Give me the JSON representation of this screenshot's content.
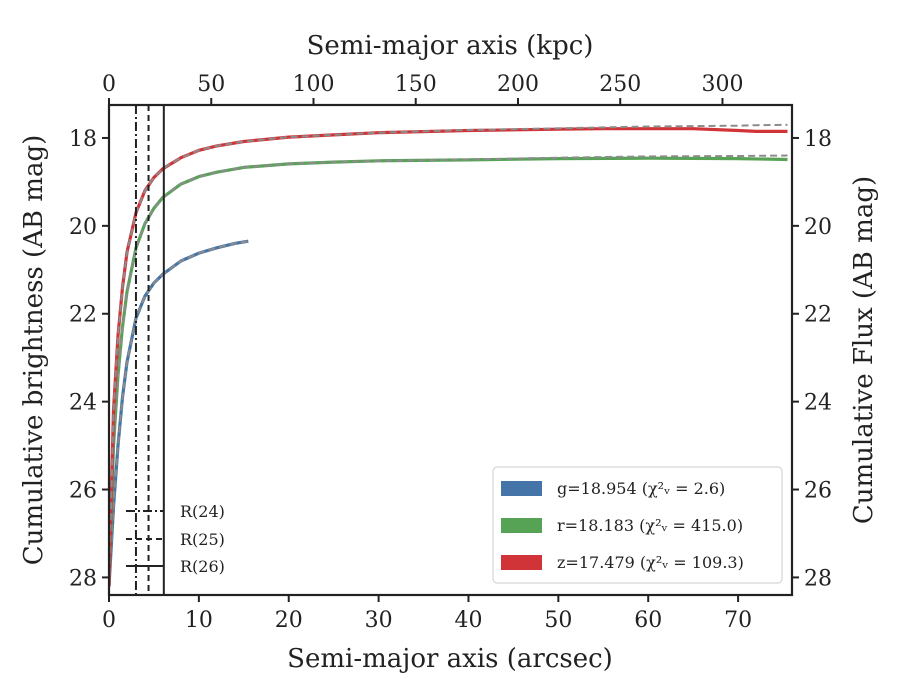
{
  "chart_data": {
    "type": "line",
    "xlabel": "Semi-major axis (arcsec)",
    "xlabel_top": "Semi-major axis (kpc)",
    "ylabel": "Cumulative brightness (AB mag)",
    "ylabel_right": "Cumulative Flux (AB mag)",
    "xlim": [
      0,
      76
    ],
    "ylim": [
      28.4,
      17.25
    ],
    "xlim_top": [
      0,
      334
    ],
    "x_ticks": [
      "0",
      "10",
      "20",
      "30",
      "40",
      "50",
      "60",
      "70"
    ],
    "y_ticks": [
      "18",
      "20",
      "22",
      "24",
      "26",
      "28"
    ],
    "x_top_ticks": [
      "0",
      "50",
      "100",
      "150",
      "200",
      "250",
      "300"
    ],
    "y_right_ticks": [
      "18",
      "20",
      "22",
      "24",
      "26",
      "28"
    ],
    "grid": false,
    "legend_placement": "lower-right",
    "series": [
      {
        "name": "g=18.954 (χ²ν = 2.6)",
        "legend_label": "g=18.954 (χ²ᵥ = 2.6)",
        "color": "#4575a8",
        "x": [
          0,
          0.5,
          1,
          1.5,
          2,
          3,
          4,
          5,
          6,
          8,
          10,
          12,
          14,
          15.5
        ],
        "y": [
          28.2,
          26.4,
          25.0,
          23.9,
          23.1,
          22.1,
          21.6,
          21.3,
          21.1,
          20.8,
          20.62,
          20.5,
          20.4,
          20.35
        ],
        "model_y": [
          28.2,
          26.4,
          25.0,
          23.9,
          23.1,
          22.1,
          21.6,
          21.3,
          21.1,
          20.8,
          20.62,
          20.5,
          20.4,
          20.35
        ]
      },
      {
        "name": "r=18.183 (χ²ν = 415.0)",
        "legend_label": "r=18.183 (χ²ᵥ = 415.0)",
        "color": "#57a356",
        "x": [
          0,
          0.5,
          1,
          1.5,
          2,
          3,
          4,
          5,
          6,
          8,
          10,
          12,
          15,
          20,
          25,
          30,
          40,
          50,
          60,
          70,
          75.5
        ],
        "y": [
          28.2,
          25.0,
          23.4,
          22.3,
          21.5,
          20.5,
          19.95,
          19.6,
          19.35,
          19.05,
          18.88,
          18.78,
          18.67,
          18.59,
          18.55,
          18.52,
          18.5,
          18.47,
          18.46,
          18.47,
          18.49
        ],
        "model_y": [
          28.2,
          25.0,
          23.4,
          22.3,
          21.5,
          20.5,
          19.95,
          19.6,
          19.35,
          19.05,
          18.88,
          18.78,
          18.67,
          18.59,
          18.55,
          18.52,
          18.49,
          18.45,
          18.42,
          18.41,
          18.4
        ]
      },
      {
        "name": "z=17.479 (χ²ν = 109.3)",
        "legend_label": "z=17.479 (χ²ᵥ = 109.3)",
        "color": "#d13438",
        "x": [
          0,
          0.5,
          1,
          1.5,
          2,
          3,
          4,
          5,
          6,
          8,
          10,
          12,
          15,
          20,
          25,
          30,
          40,
          50,
          55,
          60,
          65,
          70,
          72,
          75.5
        ],
        "y": [
          28.2,
          24.2,
          22.5,
          21.4,
          20.6,
          19.7,
          19.2,
          18.9,
          18.7,
          18.45,
          18.28,
          18.18,
          18.08,
          17.98,
          17.93,
          17.88,
          17.83,
          17.8,
          17.79,
          17.79,
          17.79,
          17.83,
          17.85,
          17.85
        ],
        "model_y": [
          28.2,
          24.2,
          22.5,
          21.4,
          20.6,
          19.7,
          19.2,
          18.9,
          18.7,
          18.45,
          18.28,
          18.18,
          18.08,
          17.98,
          17.93,
          17.88,
          17.82,
          17.78,
          17.76,
          17.74,
          17.73,
          17.72,
          17.71,
          17.7
        ]
      }
    ],
    "radius_markers": [
      {
        "label": "R(24)",
        "x": 3.0,
        "style": "dash-dot"
      },
      {
        "label": "R(25)",
        "x": 4.4,
        "style": "dashed"
      },
      {
        "label": "R(26)",
        "x": 6.1,
        "style": "solid"
      }
    ],
    "model_line_color": "#8c8c8c"
  }
}
